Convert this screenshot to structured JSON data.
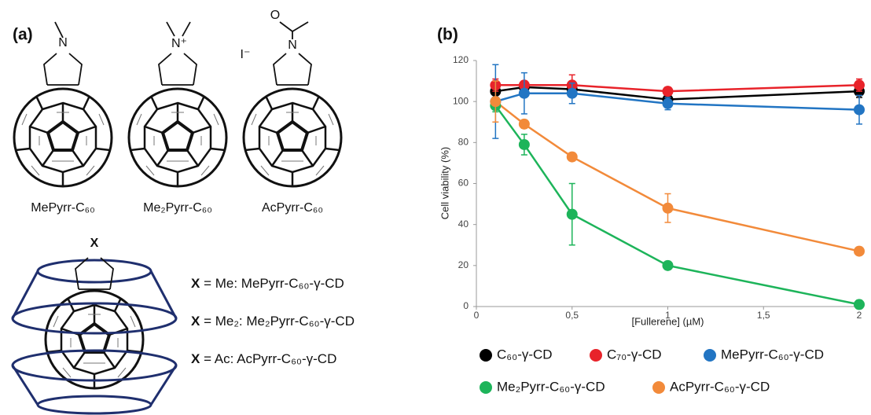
{
  "panel_a": {
    "label": "(a)",
    "molecules": [
      {
        "label": "MePyrr-C₆₀",
        "atoms": [
          "N"
        ]
      },
      {
        "label": "Me₂Pyrr-C₆₀",
        "atoms": [
          "N⁺",
          "I⁻"
        ]
      },
      {
        "label": "AcPyrr-C₆₀",
        "atoms": [
          "O",
          "N"
        ]
      }
    ],
    "complex_symbol": "X",
    "definitions": [
      {
        "symbol": "X",
        "text": " = Me: MePyrr-C₆₀-γ-CD"
      },
      {
        "symbol": "X",
        "text": " = Me₂: Me₂Pyrr-C₆₀-γ-CD"
      },
      {
        "symbol": "X",
        "text": " = Ac: AcPyrr-C₆₀-γ-CD"
      }
    ]
  },
  "chart_data": {
    "type": "line",
    "panel_label": "(b)",
    "x_label": "[Fullerene] (µM)",
    "y_label": "Cell viability (%)",
    "x": [
      0.1,
      0.25,
      0.5,
      1,
      2
    ],
    "xlim": [
      0,
      2
    ],
    "xticks": [
      0,
      {
        "value": 0.5,
        "label": "0,5"
      },
      1,
      {
        "value": 1.5,
        "label": "1,5"
      },
      2
    ],
    "ylim": [
      0,
      120
    ],
    "yticks": [
      0,
      20,
      40,
      60,
      80,
      100,
      120
    ],
    "grid": false,
    "legend": "bottom",
    "series": [
      {
        "name": "C₆₀-γ-CD",
        "color": "#000000",
        "values": [
          105,
          107,
          106,
          101,
          105
        ],
        "errors": [
          3,
          2,
          2,
          2,
          3
        ]
      },
      {
        "name": "C₇₀-γ-CD",
        "color": "#e8232a",
        "values": [
          108,
          108,
          108,
          105,
          108
        ],
        "errors": [
          3,
          2,
          5,
          2,
          3
        ]
      },
      {
        "name": "MePyrr-C₆₀-γ-CD",
        "color": "#2275c3",
        "values": [
          100,
          104,
          104,
          99,
          96
        ],
        "errors": [
          18,
          10,
          5,
          3,
          7
        ]
      },
      {
        "name": "Me₂Pyrr-C₆₀-γ-CD",
        "color": "#1db45a",
        "values": [
          98,
          79,
          45,
          20,
          1
        ],
        "errors": [
          3,
          5,
          15,
          2,
          2
        ]
      },
      {
        "name": "AcPyrr-C₆₀-γ-CD",
        "color": "#f28a3a",
        "values": [
          100,
          89,
          73,
          48,
          27
        ],
        "errors": [
          10,
          2,
          2,
          7,
          2
        ]
      }
    ]
  }
}
